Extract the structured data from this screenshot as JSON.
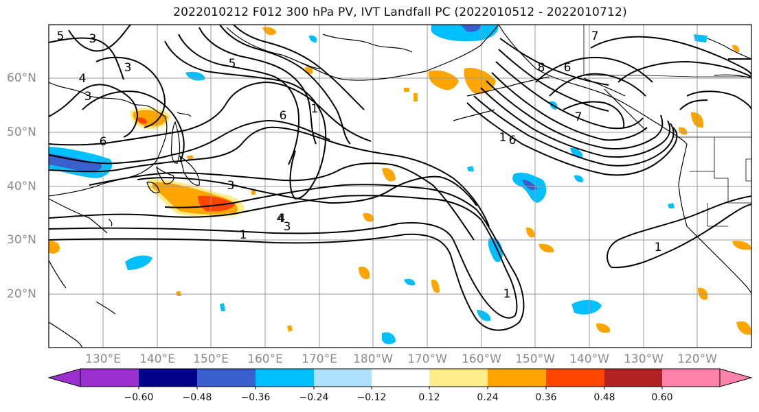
{
  "title": "2022010212 F012 300 hPa PV, IVT Landfall PC (2022010512 - 2022010712)",
  "lat_labels": [
    "60°N",
    "50°N",
    "40°N",
    "30°N",
    "20°N"
  ],
  "lon_labels": [
    "130°E",
    "140°E",
    "150°E",
    "160°E",
    "170°E",
    "180°W",
    "170°W",
    "160°W",
    "150°W",
    "140°W",
    "130°W",
    "120°W"
  ],
  "contour_labels": [
    "5",
    "3",
    "4",
    "3",
    "6",
    "5",
    "3",
    "6",
    "1",
    "3",
    "4",
    "1",
    "4",
    "3",
    "1",
    "7",
    "6",
    "8",
    "7",
    "1",
    "1",
    "6"
  ],
  "colorbar": {
    "ticks": [
      "−0.60",
      "−0.48",
      "−0.36",
      "−0.24",
      "−0.12",
      "0.12",
      "0.24",
      "0.36",
      "0.48",
      "0.60"
    ],
    "colors": [
      "#9b30d0",
      "#00008b",
      "#3a5fcd",
      "#00bfff",
      "#b0e2ff",
      "#ffffff",
      "#ffec8b",
      "#ffa500",
      "#ff4500",
      "#b22222",
      "#ff82ab"
    ]
  }
}
